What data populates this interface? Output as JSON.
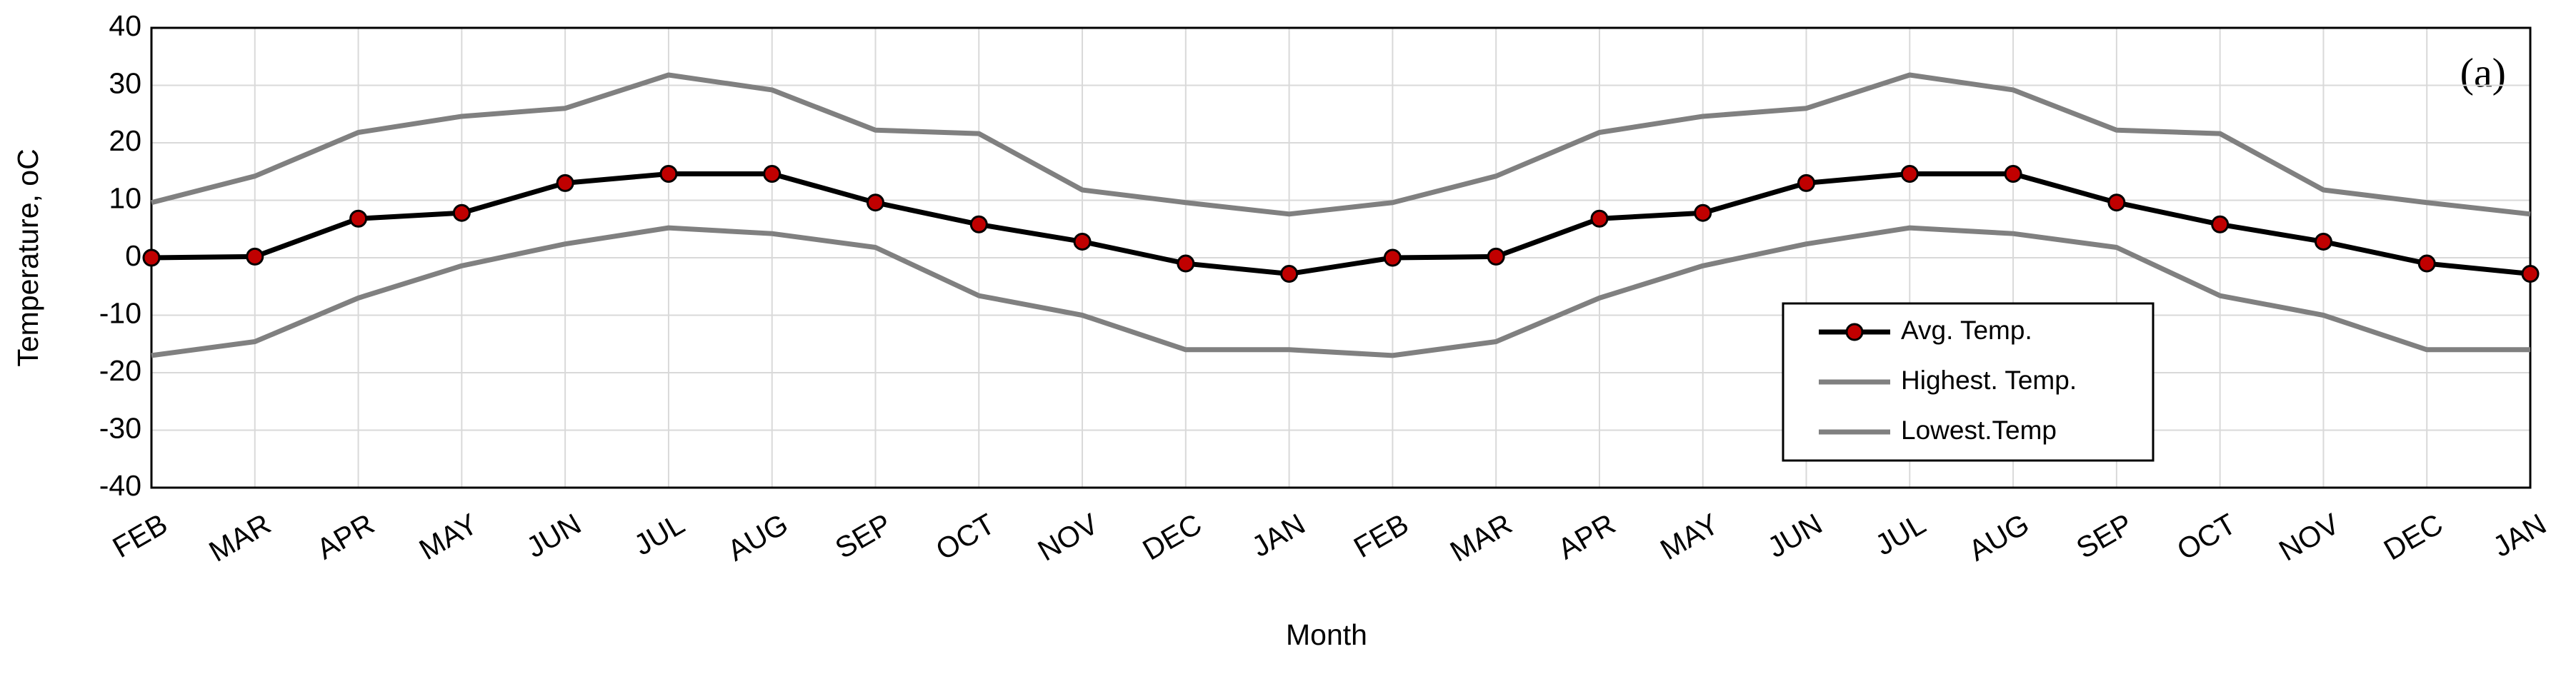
{
  "chart_data": {
    "type": "line",
    "annotation": "(a)",
    "x_label": "Month",
    "y_label": "Temperature, oC",
    "categories": [
      "FEB",
      "MAR",
      "APR",
      "MAY",
      "JUN",
      "JUL",
      "AUG",
      "SEP",
      "OCT",
      "NOV",
      "DEC",
      "JAN",
      "FEB",
      "MAR",
      "APR",
      "MAY",
      "JUN",
      "JUL",
      "AUG",
      "SEP",
      "OCT",
      "NOV",
      "DEC",
      "JAN"
    ],
    "series": [
      {
        "name": "Avg. Temp.",
        "color": "#000000",
        "marker_color": "#c00000",
        "values": [
          0,
          0.2,
          6.8,
          7.8,
          13,
          14.6,
          14.6,
          9.6,
          5.8,
          2.8,
          -1,
          -2.8,
          0,
          0.2,
          6.8,
          7.8,
          13,
          14.6,
          14.6,
          9.6,
          5.8,
          2.8,
          -1,
          -2.8
        ]
      },
      {
        "name": "Highest. Temp.",
        "color": "#808080",
        "values": [
          9.6,
          14.2,
          21.8,
          24.6,
          26,
          31.8,
          29.2,
          22.2,
          21.6,
          11.8,
          9.6,
          7.6,
          9.6,
          14.2,
          21.8,
          24.6,
          26,
          31.8,
          29.2,
          22.2,
          21.6,
          11.8,
          9.6,
          7.6
        ]
      },
      {
        "name": "Lowest.Temp",
        "color": "#808080",
        "values": [
          -17,
          -14.6,
          -7,
          -1.4,
          2.4,
          5.2,
          4.2,
          1.8,
          -6.6,
          -10,
          -16,
          -16,
          -17,
          -14.6,
          -7,
          -1.4,
          2.4,
          5.2,
          4.2,
          1.8,
          -6.6,
          -10,
          -16,
          -16
        ]
      }
    ],
    "ylim": [
      -40,
      40
    ],
    "yticks": [
      -40,
      -30,
      -20,
      -10,
      0,
      10,
      20,
      30,
      40
    ],
    "grid": true
  }
}
